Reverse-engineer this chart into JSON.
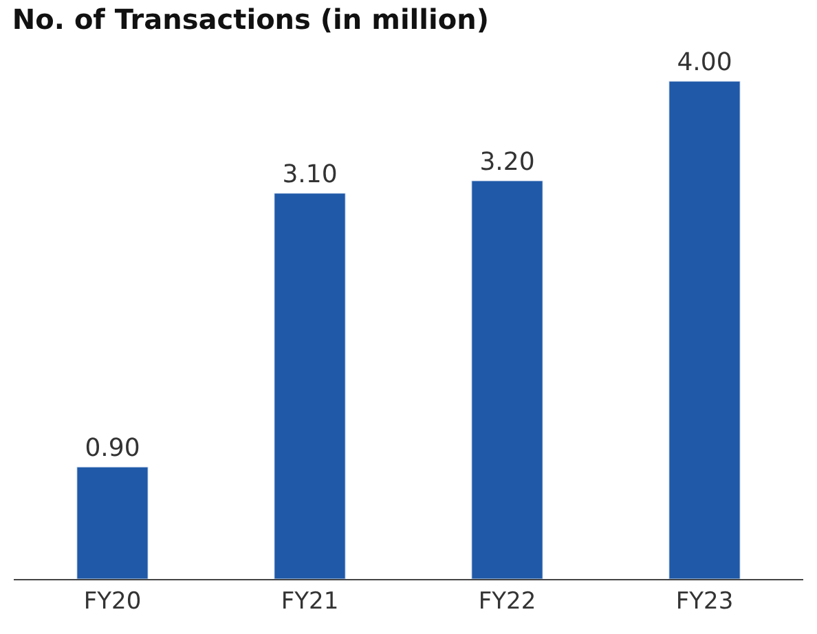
{
  "chart_data": {
    "type": "bar",
    "title": "No. of Transactions (in million)",
    "categories": [
      "FY20",
      "FY21",
      "FY22",
      "FY23"
    ],
    "values": [
      0.9,
      3.1,
      3.2,
      4.0
    ],
    "value_labels": [
      "0.90",
      "3.10",
      "3.20",
      "4.00"
    ],
    "color": "#1f59a8"
  }
}
